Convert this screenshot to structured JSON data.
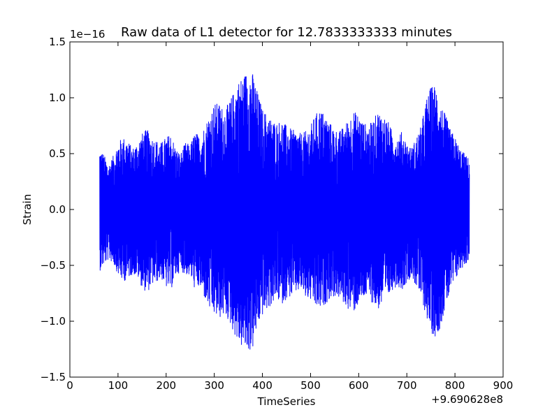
{
  "chart_data": {
    "type": "line",
    "title": "Raw data of L1 detector for 12.7833333333 minutes",
    "xlabel": "TimeSeries",
    "ylabel": "Strain",
    "x_offset_label": "+9.690628e8",
    "y_scale_label": "1e−16",
    "xlim": [
      0,
      900
    ],
    "ylim": [
      -1.5,
      1.5
    ],
    "x_ticks": [
      0,
      100,
      200,
      300,
      400,
      500,
      600,
      700,
      800,
      900
    ],
    "x_tick_labels": [
      "0",
      "100",
      "200",
      "300",
      "400",
      "500",
      "600",
      "700",
      "800",
      "900"
    ],
    "y_ticks": [
      -1.5,
      -1.0,
      -0.5,
      0.0,
      0.5,
      1.0,
      1.5
    ],
    "y_tick_labels": [
      "−1.5",
      "−1.0",
      "−0.5",
      "0.0",
      "0.5",
      "1.0",
      "1.5"
    ],
    "grid": false,
    "series": [
      {
        "color": "#0000ff",
        "x": [
          62,
          70,
          80,
          90,
          100,
          110,
          120,
          130,
          140,
          150,
          160,
          170,
          180,
          190,
          200,
          210,
          220,
          230,
          240,
          250,
          260,
          270,
          280,
          290,
          300,
          310,
          320,
          330,
          340,
          350,
          360,
          370,
          380,
          390,
          400,
          410,
          420,
          430,
          440,
          450,
          460,
          470,
          480,
          490,
          500,
          510,
          520,
          530,
          540,
          550,
          560,
          570,
          580,
          590,
          600,
          610,
          620,
          630,
          640,
          650,
          660,
          670,
          680,
          690,
          700,
          710,
          720,
          730,
          740,
          750,
          760,
          770,
          780,
          790,
          800,
          810,
          820,
          830
        ],
        "upper": [
          0.55,
          0.5,
          0.4,
          0.48,
          0.6,
          0.65,
          0.62,
          0.55,
          0.6,
          0.68,
          0.72,
          0.65,
          0.62,
          0.6,
          0.65,
          0.68,
          0.55,
          0.5,
          0.6,
          0.58,
          0.7,
          0.65,
          0.75,
          0.85,
          0.95,
          0.95,
          0.9,
          0.95,
          1.05,
          1.15,
          1.2,
          1.25,
          1.22,
          1.05,
          0.9,
          0.85,
          0.8,
          0.78,
          0.8,
          0.75,
          0.72,
          0.7,
          0.68,
          0.7,
          0.75,
          0.85,
          0.9,
          0.85,
          0.78,
          0.72,
          0.7,
          0.75,
          0.82,
          0.88,
          0.85,
          0.78,
          0.75,
          0.8,
          0.88,
          0.85,
          0.8,
          0.7,
          0.65,
          0.7,
          0.6,
          0.55,
          0.65,
          0.75,
          0.98,
          1.1,
          1.12,
          0.95,
          0.85,
          0.72,
          0.65,
          0.55,
          0.5,
          0.45
        ],
        "lower": [
          -0.55,
          -0.5,
          -0.45,
          -0.48,
          -0.58,
          -0.65,
          -0.62,
          -0.58,
          -0.6,
          -0.7,
          -0.75,
          -0.68,
          -0.65,
          -0.62,
          -0.7,
          -0.72,
          -0.6,
          -0.55,
          -0.58,
          -0.6,
          -0.72,
          -0.7,
          -0.8,
          -0.9,
          -0.95,
          -0.98,
          -0.95,
          -1.0,
          -1.1,
          -1.2,
          -1.25,
          -1.28,
          -1.25,
          -1.05,
          -0.95,
          -0.9,
          -0.85,
          -0.8,
          -0.85,
          -0.8,
          -0.78,
          -0.75,
          -0.72,
          -0.8,
          -0.82,
          -0.88,
          -0.9,
          -0.85,
          -0.8,
          -0.78,
          -0.8,
          -0.85,
          -0.9,
          -0.92,
          -0.85,
          -0.8,
          -0.78,
          -0.85,
          -0.9,
          -0.85,
          -0.8,
          -0.72,
          -0.68,
          -0.72,
          -0.65,
          -0.6,
          -0.7,
          -0.8,
          -0.95,
          -1.1,
          -1.15,
          -1.05,
          -0.88,
          -0.75,
          -0.65,
          -0.55,
          -0.5,
          -0.45
        ]
      }
    ]
  }
}
